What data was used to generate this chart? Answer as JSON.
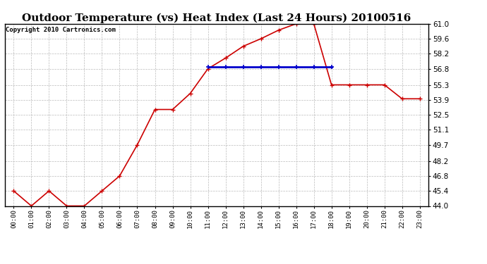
{
  "title": "Outdoor Temperature (vs) Heat Index (Last 24 Hours) 20100516",
  "copyright": "Copyright 2010 Cartronics.com",
  "x_labels": [
    "00:00",
    "01:00",
    "02:00",
    "03:00",
    "04:00",
    "05:00",
    "06:00",
    "07:00",
    "08:00",
    "09:00",
    "10:00",
    "11:00",
    "12:00",
    "13:00",
    "14:00",
    "15:00",
    "16:00",
    "17:00",
    "18:00",
    "19:00",
    "20:00",
    "21:00",
    "22:00",
    "23:00"
  ],
  "temp_values": [
    45.4,
    44.0,
    45.4,
    44.0,
    44.0,
    45.4,
    46.8,
    49.7,
    53.0,
    53.0,
    54.5,
    56.8,
    57.8,
    58.9,
    59.6,
    60.4,
    61.0,
    61.0,
    55.3,
    55.3,
    55.3,
    55.3,
    54.0,
    54.0
  ],
  "heat_values": [
    null,
    null,
    null,
    null,
    null,
    null,
    null,
    null,
    null,
    null,
    null,
    57.0,
    57.0,
    57.0,
    57.0,
    57.0,
    57.0,
    57.0,
    57.0,
    null,
    null,
    null,
    null,
    null
  ],
  "ylim": [
    44.0,
    61.0
  ],
  "yticks": [
    44.0,
    45.4,
    46.8,
    48.2,
    49.7,
    51.1,
    52.5,
    53.9,
    55.3,
    56.8,
    58.2,
    59.6,
    61.0
  ],
  "temp_color": "#cc0000",
  "heat_color": "#0000cc",
  "grid_color": "#bbbbbb",
  "bg_color": "#ffffff",
  "title_fontsize": 11,
  "copyright_fontsize": 6.5,
  "tick_fontsize": 7.5,
  "x_tick_fontsize": 6.5
}
